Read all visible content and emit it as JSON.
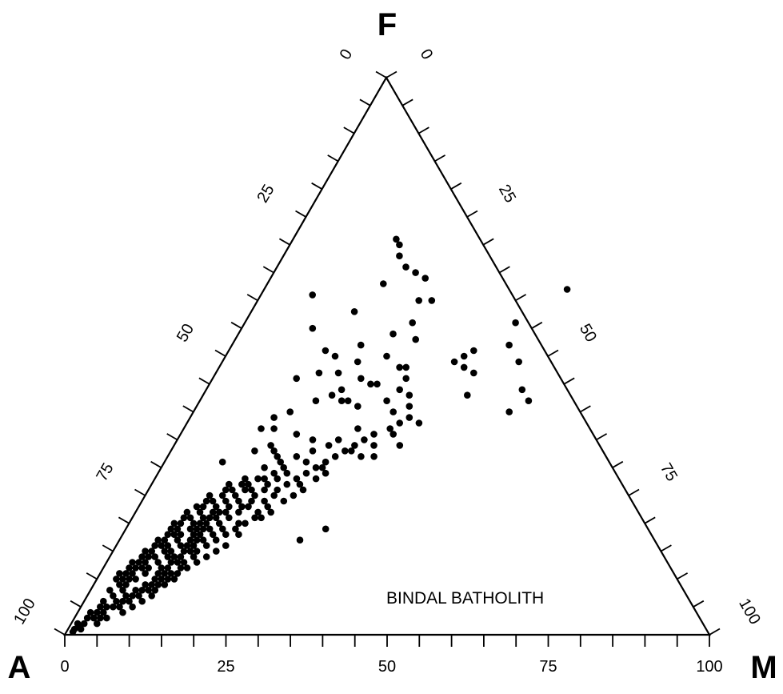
{
  "chart_data": {
    "type": "scatter",
    "subtype": "ternary",
    "annotation": "BINDAL BATHOLITH",
    "vertices": {
      "top": "F",
      "left": "A",
      "right": "M"
    },
    "grid": false,
    "tick_step": 5,
    "bottom_axis": {
      "labels": [
        "0",
        "25",
        "50",
        "75",
        "100"
      ]
    },
    "left_axis": {
      "labels": [
        "100",
        "75",
        "50",
        "25",
        "0"
      ]
    },
    "right_axis": {
      "labels": [
        "100",
        "75",
        "50",
        "25",
        "0"
      ]
    },
    "point_units": "F (%), M (%)",
    "points": [
      [
        42,
        51
      ],
      [
        40,
        49
      ],
      [
        44,
        49
      ],
      [
        49,
        46
      ],
      [
        43,
        41
      ],
      [
        47,
        40
      ],
      [
        56,
        42
      ],
      [
        62,
        47
      ],
      [
        52,
        43
      ],
      [
        48,
        38
      ],
      [
        50,
        37
      ],
      [
        51,
        38
      ],
      [
        49,
        36
      ],
      [
        34,
        35
      ],
      [
        32,
        32
      ],
      [
        19,
        31
      ],
      [
        17,
        28
      ],
      [
        33,
        28
      ],
      [
        30,
        25
      ],
      [
        41,
        25
      ],
      [
        45,
        25
      ],
      [
        42,
        23
      ],
      [
        46,
        23
      ],
      [
        42,
        22
      ],
      [
        44,
        21
      ],
      [
        47,
        19
      ],
      [
        50,
        17
      ],
      [
        51,
        15
      ],
      [
        43,
        20
      ],
      [
        42,
        18
      ],
      [
        46,
        13
      ],
      [
        47,
        16
      ],
      [
        54,
        24
      ],
      [
        58,
        16
      ],
      [
        52,
        20
      ],
      [
        60,
        25
      ],
      [
        40,
        15
      ],
      [
        39,
        13
      ],
      [
        37,
        12
      ],
      [
        50,
        25
      ],
      [
        48,
        28
      ],
      [
        45,
        26
      ],
      [
        49,
        21
      ],
      [
        53,
        28
      ],
      [
        55,
        11
      ],
      [
        60,
        27
      ],
      [
        64,
        24
      ],
      [
        65,
        22
      ],
      [
        66,
        20
      ],
      [
        68,
        18
      ],
      [
        70,
        17
      ],
      [
        71,
        16
      ],
      [
        63,
        18
      ],
      [
        61,
        8
      ],
      [
        56,
        26
      ],
      [
        35,
        21
      ],
      [
        36,
        18
      ],
      [
        37,
        14
      ],
      [
        33,
        13
      ],
      [
        30,
        16
      ],
      [
        31,
        9
      ],
      [
        27,
        12
      ],
      [
        28,
        17
      ],
      [
        29,
        20
      ],
      [
        31,
        22
      ],
      [
        25,
        20
      ],
      [
        24,
        19
      ],
      [
        23,
        17
      ],
      [
        22,
        21
      ],
      [
        21,
        19
      ],
      [
        20,
        17
      ],
      [
        24,
        15
      ],
      [
        26,
        15
      ],
      [
        22,
        14
      ],
      [
        21,
        13
      ],
      [
        20,
        12
      ],
      [
        19,
        12
      ],
      [
        18,
        11
      ],
      [
        17,
        11
      ],
      [
        16,
        10
      ],
      [
        15,
        9
      ],
      [
        14,
        9
      ],
      [
        13,
        8
      ],
      [
        12,
        7
      ],
      [
        11,
        7
      ],
      [
        10,
        6
      ],
      [
        9,
        5
      ],
      [
        8,
        5
      ],
      [
        7,
        4
      ],
      [
        6,
        3
      ],
      [
        5,
        3
      ],
      [
        4,
        2
      ],
      [
        3,
        2
      ],
      [
        2,
        1
      ],
      [
        1,
        1
      ],
      [
        18,
        14
      ],
      [
        19,
        13
      ],
      [
        17,
        13
      ],
      [
        16,
        12
      ],
      [
        15,
        12
      ],
      [
        14,
        11
      ],
      [
        13,
        11
      ],
      [
        12,
        10
      ],
      [
        11,
        9
      ],
      [
        10,
        9
      ],
      [
        9,
        8
      ],
      [
        8,
        7
      ],
      [
        7,
        6
      ],
      [
        6,
        6
      ],
      [
        5,
        5
      ],
      [
        4,
        4
      ],
      [
        26,
        18
      ],
      [
        25,
        17
      ],
      [
        24,
        13
      ],
      [
        23,
        14
      ],
      [
        22,
        12
      ],
      [
        21,
        11
      ],
      [
        20,
        10
      ],
      [
        19,
        10
      ],
      [
        18,
        9
      ],
      [
        17,
        9
      ],
      [
        16,
        8
      ],
      [
        15,
        8
      ],
      [
        14,
        7
      ],
      [
        13,
        6
      ],
      [
        12,
        6
      ],
      [
        11,
        5
      ],
      [
        10,
        5
      ],
      [
        9,
        4
      ],
      [
        8,
        3
      ],
      [
        28,
        14
      ],
      [
        27,
        15
      ],
      [
        26,
        13
      ],
      [
        25,
        12
      ],
      [
        24,
        11
      ],
      [
        23,
        10
      ],
      [
        22,
        10
      ],
      [
        21,
        9
      ],
      [
        20,
        8
      ],
      [
        19,
        8
      ],
      [
        18,
        8
      ],
      [
        17,
        7
      ],
      [
        16,
        7
      ],
      [
        15,
        6
      ],
      [
        14,
        6
      ],
      [
        13,
        5
      ],
      [
        12,
        5
      ],
      [
        11,
        4
      ],
      [
        10,
        4
      ],
      [
        29,
        18
      ],
      [
        28,
        16
      ],
      [
        27,
        14
      ],
      [
        26,
        12
      ],
      [
        25,
        10
      ],
      [
        24,
        10
      ],
      [
        23,
        9
      ],
      [
        22,
        8
      ],
      [
        21,
        8
      ],
      [
        20,
        7
      ],
      [
        19,
        7
      ],
      [
        18,
        7
      ],
      [
        17,
        6
      ],
      [
        16,
        6
      ],
      [
        15,
        5
      ],
      [
        14,
        5
      ],
      [
        13,
        4
      ],
      [
        12,
        4
      ],
      [
        11,
        3
      ],
      [
        10,
        3
      ],
      [
        20,
        14
      ],
      [
        21,
        15
      ],
      [
        22,
        16
      ],
      [
        23,
        16
      ],
      [
        24,
        17
      ],
      [
        19,
        15
      ],
      [
        18,
        16
      ],
      [
        17,
        15
      ],
      [
        16,
        14
      ],
      [
        15,
        13
      ],
      [
        14,
        13
      ],
      [
        13,
        12
      ],
      [
        12,
        12
      ],
      [
        11,
        11
      ],
      [
        10,
        11
      ],
      [
        9,
        10
      ],
      [
        8,
        9
      ],
      [
        7,
        8
      ],
      [
        6,
        7
      ],
      [
        5,
        6
      ],
      [
        26,
        20
      ],
      [
        27,
        21
      ],
      [
        28,
        22
      ],
      [
        29,
        23
      ],
      [
        30,
        24
      ],
      [
        31,
        25
      ],
      [
        32,
        26
      ],
      [
        33,
        27
      ],
      [
        34,
        28
      ],
      [
        35,
        29
      ],
      [
        36,
        30
      ],
      [
        37,
        32
      ],
      [
        38,
        33
      ],
      [
        32,
        30
      ],
      [
        34,
        31
      ],
      [
        36,
        33
      ],
      [
        38,
        36
      ],
      [
        39,
        34
      ],
      [
        41,
        33
      ],
      [
        43,
        32
      ],
      [
        44,
        30
      ],
      [
        46,
        30
      ],
      [
        48,
        29
      ],
      [
        40,
        31
      ],
      [
        42,
        29
      ],
      [
        37,
        27
      ],
      [
        35,
        25
      ],
      [
        30,
        19
      ],
      [
        31,
        18
      ],
      [
        32,
        17
      ],
      [
        33,
        16
      ],
      [
        34,
        15
      ],
      [
        32,
        20
      ],
      [
        33,
        22
      ],
      [
        34,
        24
      ],
      [
        28,
        19
      ],
      [
        27,
        18
      ],
      [
        26,
        16
      ],
      [
        25,
        14
      ],
      [
        16,
        17
      ],
      [
        15,
        16
      ],
      [
        14,
        15
      ],
      [
        13,
        14
      ],
      [
        12,
        13
      ],
      [
        11,
        12
      ],
      [
        10,
        12
      ],
      [
        9,
        11
      ],
      [
        8,
        10
      ],
      [
        7,
        10
      ],
      [
        6,
        9
      ],
      [
        5,
        8
      ],
      [
        4,
        7
      ],
      [
        3,
        5
      ],
      [
        2,
        4
      ],
      [
        20,
        18
      ],
      [
        19,
        17
      ],
      [
        18,
        18
      ],
      [
        21,
        20
      ],
      [
        22,
        19
      ],
      [
        23,
        20
      ],
      [
        24,
        22
      ],
      [
        25,
        23
      ],
      [
        26,
        24
      ],
      [
        27,
        23
      ],
      [
        28,
        25
      ],
      [
        29,
        26
      ],
      [
        12,
        9
      ],
      [
        13,
        10
      ],
      [
        14,
        10
      ],
      [
        15,
        11
      ],
      [
        16,
        11
      ],
      [
        17,
        12
      ],
      [
        18,
        12
      ],
      [
        19,
        11
      ],
      [
        20,
        11
      ],
      [
        21,
        12
      ],
      [
        22,
        13
      ],
      [
        23,
        12
      ],
      [
        7,
        7
      ],
      [
        8,
        8
      ],
      [
        9,
        9
      ],
      [
        10,
        10
      ],
      [
        11,
        10
      ],
      [
        6,
        5
      ],
      [
        5,
        4
      ],
      [
        4,
        3
      ],
      [
        3,
        3
      ],
      [
        3,
        4
      ],
      [
        2,
        2
      ],
      [
        1,
        2
      ],
      [
        0.5,
        1
      ],
      [
        1.5,
        1.5
      ]
    ]
  }
}
